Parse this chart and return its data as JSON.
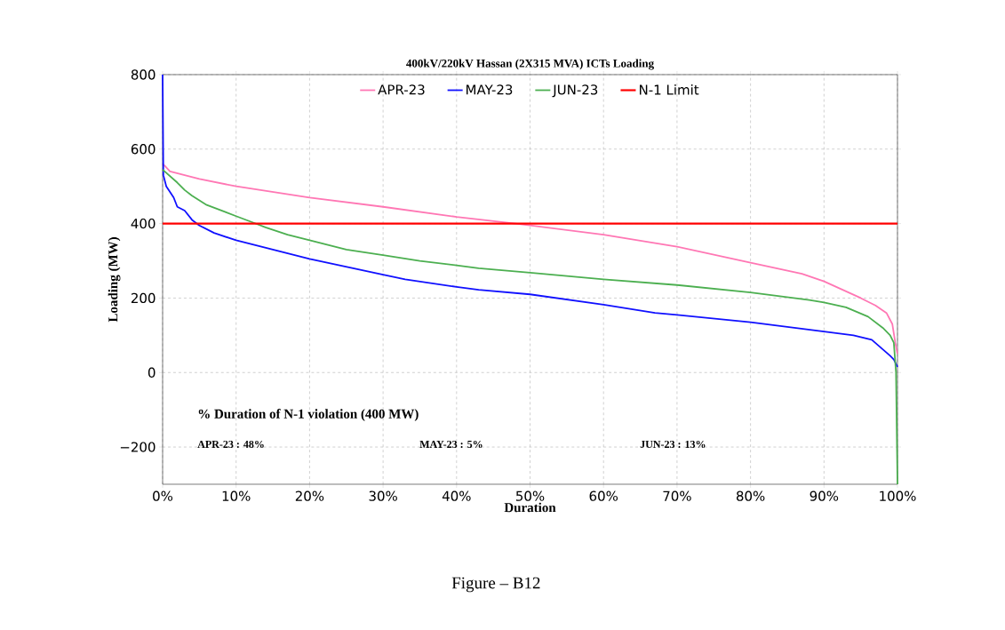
{
  "chart_data": {
    "type": "line",
    "title": "400kV/220kV Hassan (2X315 MVA) ICTs Loading",
    "xlabel": "Duration",
    "ylabel": "Loading (MW)",
    "series": [
      {
        "name": "APR-23",
        "color": "#ff77b4",
        "x": [
          0,
          0.3,
          1,
          5,
          10,
          20,
          30,
          40,
          48,
          50,
          60,
          70,
          80,
          87,
          90,
          95,
          97,
          98.5,
          99.3,
          99.7,
          100
        ],
        "values": [
          560,
          555,
          540,
          520,
          500,
          470,
          445,
          418,
          400,
          395,
          370,
          338,
          295,
          265,
          245,
          200,
          180,
          160,
          130,
          80,
          50
        ]
      },
      {
        "name": "MAY-23",
        "color": "#1010ff",
        "x": [
          0,
          0.1,
          0.5,
          1.5,
          2,
          3,
          4,
          5,
          7,
          10,
          15,
          20,
          30,
          33,
          40,
          43,
          50,
          60,
          67,
          70,
          80,
          90,
          94,
          96.5,
          99,
          99.5,
          100
        ],
        "values": [
          800,
          530,
          500,
          470,
          445,
          435,
          410,
          395,
          375,
          355,
          330,
          305,
          263,
          250,
          230,
          222,
          210,
          182,
          160,
          155,
          135,
          110,
          100,
          88,
          45,
          35,
          15
        ]
      },
      {
        "name": "JUN-23",
        "color": "#4caf50",
        "x": [
          0,
          2,
          3,
          4,
          6,
          8,
          10,
          12,
          14,
          17,
          20,
          25,
          30,
          35,
          40,
          43,
          50,
          60,
          70,
          80,
          88,
          90,
          93,
          96,
          98,
          99,
          99.5,
          99.8,
          100
        ],
        "values": [
          545,
          510,
          490,
          475,
          450,
          435,
          420,
          405,
          390,
          370,
          355,
          330,
          315,
          300,
          288,
          280,
          268,
          250,
          235,
          215,
          195,
          188,
          175,
          150,
          120,
          100,
          80,
          0,
          -300
        ]
      }
    ],
    "ref_lines": [
      {
        "axis": "y",
        "value": 400,
        "label": "N-1 Limit",
        "color": "#ff0000"
      }
    ],
    "xlim": [
      0,
      100
    ],
    "ylim": [
      -300,
      800
    ],
    "xticks": [
      {
        "value": 0,
        "label": "0%"
      },
      {
        "value": 10,
        "label": "10%"
      },
      {
        "value": 20,
        "label": "20%"
      },
      {
        "value": 30,
        "label": "30%"
      },
      {
        "value": 40,
        "label": "40%"
      },
      {
        "value": 50,
        "label": "50%"
      },
      {
        "value": 60,
        "label": "60%"
      },
      {
        "value": 70,
        "label": "70%"
      },
      {
        "value": 80,
        "label": "80%"
      },
      {
        "value": 90,
        "label": "90%"
      },
      {
        "value": 100,
        "label": "100%"
      }
    ],
    "yticks": [
      {
        "value": -200,
        "label": "−200"
      },
      0,
      200,
      400,
      600,
      800
    ],
    "grid": true,
    "legend": "top",
    "line_style": "solid",
    "marker": "none",
    "annotations": [
      "% Duration of N-1 violation (400 MW)",
      "APR-23 : 48%",
      "MAY-23 : 5%",
      "JUN-23 : 13%",
      "Figure – B12"
    ]
  }
}
